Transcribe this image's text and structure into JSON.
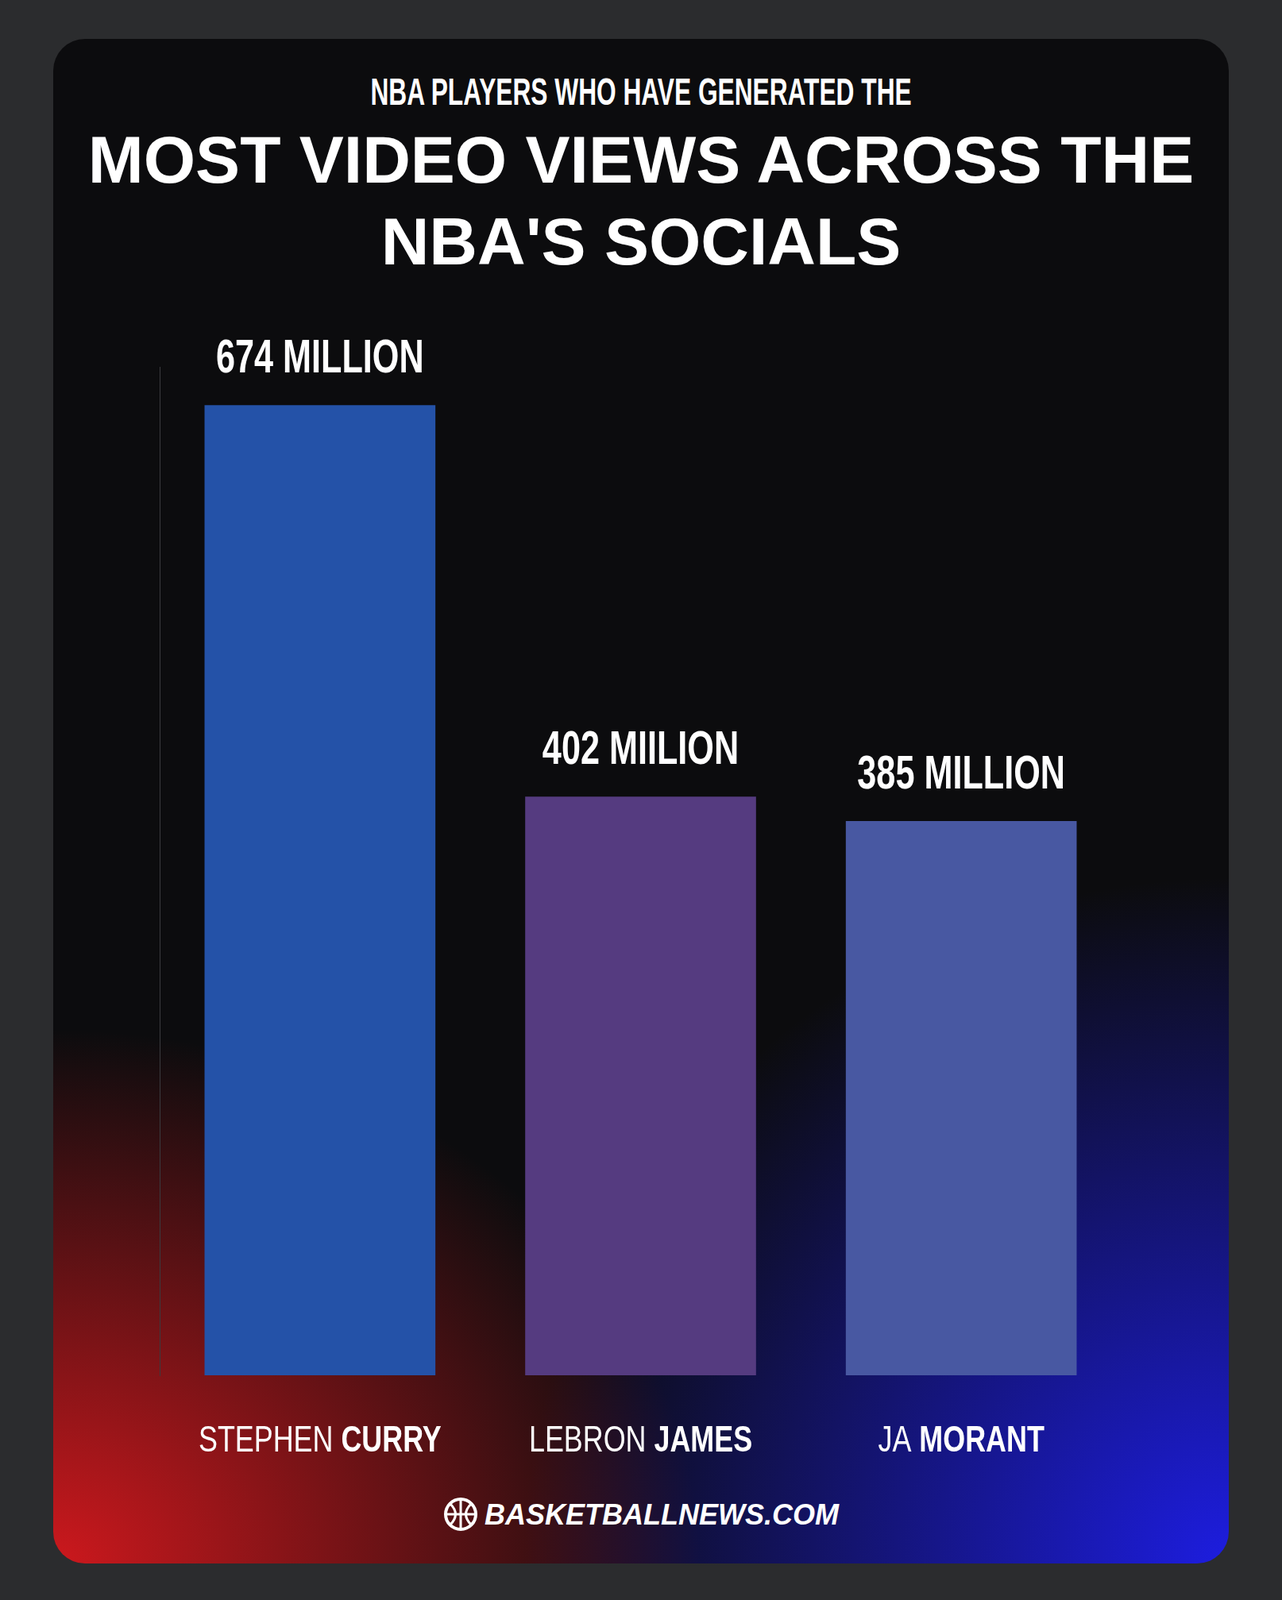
{
  "chart_data": {
    "type": "bar",
    "subtitle": "NBA PLAYERS WHO HAVE GENERATED THE",
    "title": "MOST VIDEO VIEWS ACROSS THE NBA'S SOCIALS",
    "source": "BASKETBALLNEWS.COM",
    "categories": [
      "STEPHEN CURRY",
      "LEBRON JAMES",
      "JA MORANT"
    ],
    "values": [
      674,
      402,
      385
    ],
    "value_labels": [
      "674 MILLION",
      "402 MIILION",
      "385 MILLION"
    ],
    "colors": [
      "#2452a8",
      "#553b80",
      "#4858a2"
    ],
    "ylim": [
      0,
      700
    ],
    "grid": false,
    "data_labels": true,
    "tick_labels": "x"
  }
}
